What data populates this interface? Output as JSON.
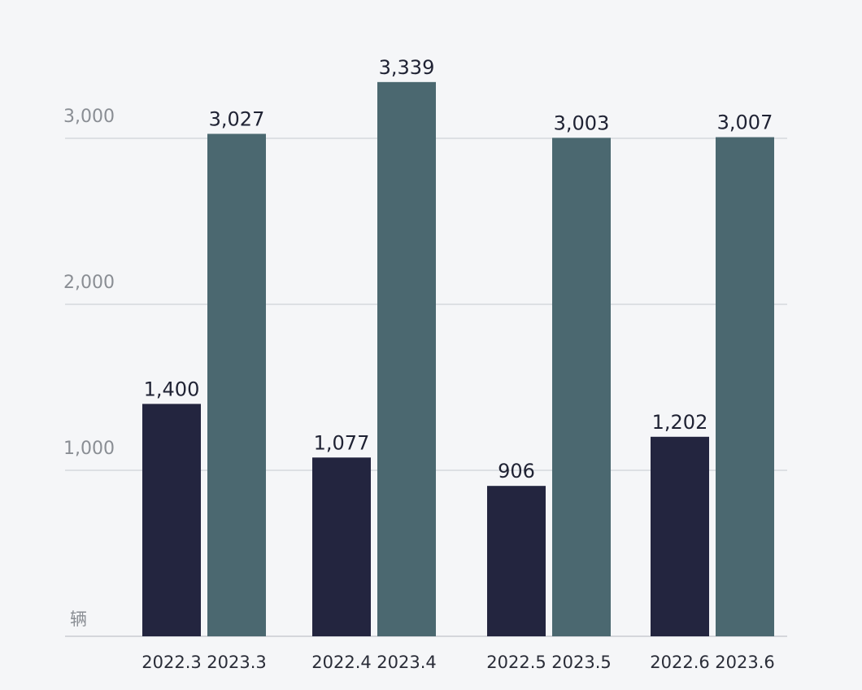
{
  "chart_data": {
    "type": "bar",
    "unit": "辆",
    "categories": [
      "3",
      "4",
      "5",
      "6"
    ],
    "series": [
      {
        "color": "#23253f",
        "x_labels": [
          "2022.3",
          "2022.4",
          "2022.5",
          "2022.6"
        ],
        "values": [
          1400,
          1077,
          906,
          1202
        ],
        "value_labels": [
          "1,400",
          "1,077",
          "906",
          "1,202"
        ]
      },
      {
        "color": "#4b6870",
        "x_labels": [
          "2023.3",
          "2023.4",
          "2023.5",
          "2023.6"
        ],
        "values": [
          3027,
          3339,
          3003,
          3007
        ],
        "value_labels": [
          "3,027",
          "3,339",
          "3,003",
          "3,007"
        ]
      }
    ],
    "y_ticks": [
      {
        "value": 1000,
        "label": "1,000"
      },
      {
        "value": 2000,
        "label": "2,000"
      },
      {
        "value": 3000,
        "label": "3,000"
      }
    ],
    "ylim": [
      0,
      3000
    ],
    "grid": true,
    "legend": "none"
  }
}
